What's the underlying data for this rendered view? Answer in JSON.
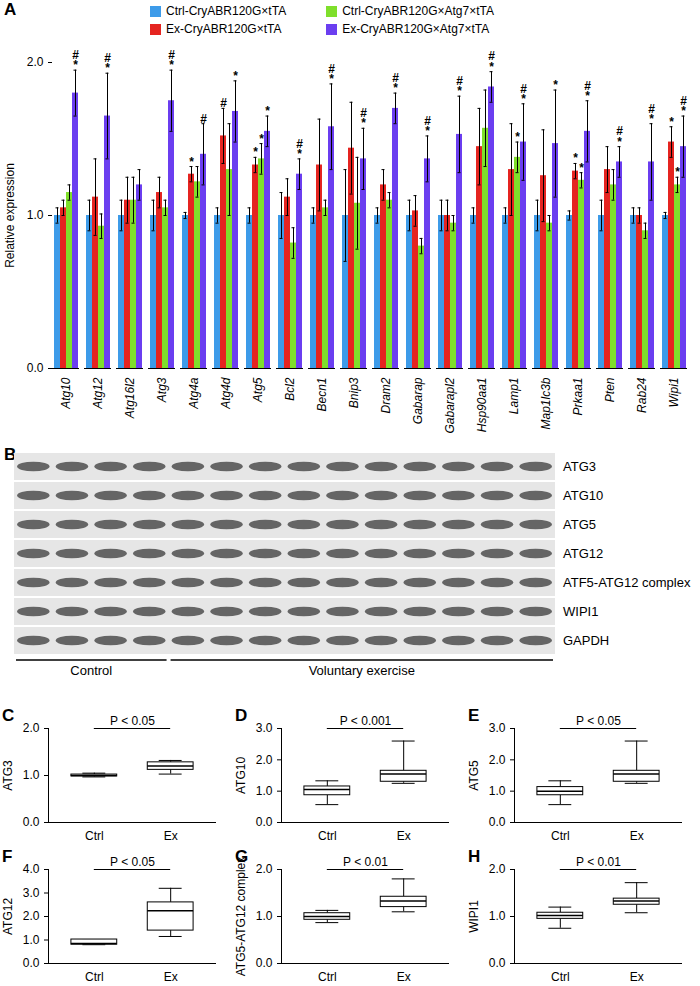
{
  "chart_data": [
    {
      "panel": "A",
      "type": "bar",
      "ylabel": "Relative expression",
      "ylim": [
        0,
        2
      ],
      "yticks": [
        0,
        1,
        2
      ],
      "legend": "top",
      "categories": [
        "Atg10",
        "Atg12",
        "Atg16l2",
        "Atg3",
        "Atg4a",
        "Atg4d",
        "Atg5",
        "Bcl2",
        "Becn1",
        "Bnip3",
        "Dram2",
        "Gabarap",
        "Gabarapl2",
        "Hsp90aa1",
        "Lamp1",
        "Map1lc3b",
        "Prkaa1",
        "Pten",
        "Rab24",
        "Wipi1"
      ],
      "series": [
        {
          "name": "Ctrl-CryABR120G×tTA",
          "color": "#3d9be9",
          "values": [
            1,
            1,
            1,
            1,
            1,
            1,
            1,
            1,
            1,
            1,
            1,
            1,
            1,
            1,
            1,
            1,
            1,
            1,
            1,
            1
          ],
          "errors": [
            0.05,
            0.1,
            0.1,
            0.1,
            0.02,
            0.05,
            0.05,
            0.15,
            0.05,
            0.3,
            0.05,
            0.1,
            0.1,
            0.05,
            0.05,
            0.1,
            0.03,
            0.1,
            0.05,
            0.02
          ],
          "significance": [
            null,
            null,
            null,
            null,
            null,
            null,
            null,
            null,
            null,
            null,
            null,
            null,
            null,
            null,
            null,
            null,
            null,
            null,
            null,
            null
          ]
        },
        {
          "name": "Ex-CryABR120G×tTA",
          "color": "#e52420",
          "values": [
            1.05,
            1.12,
            1.1,
            1.15,
            1.27,
            1.52,
            1.33,
            1.12,
            1.33,
            1.44,
            1.2,
            1.03,
            1.0,
            1.45,
            1.3,
            1.26,
            1.29,
            1.3,
            1.0,
            1.48
          ],
          "errors": [
            0.05,
            0.25,
            0.15,
            0.1,
            0.05,
            0.18,
            0.05,
            0.12,
            0.3,
            0.3,
            0.1,
            0.1,
            0.1,
            0.25,
            0.3,
            0.3,
            0.05,
            0.15,
            0.05,
            0.1
          ],
          "significance": [
            null,
            null,
            null,
            null,
            [
              "*"
            ],
            [
              "#"
            ],
            [
              "*"
            ],
            null,
            null,
            null,
            null,
            null,
            null,
            null,
            null,
            null,
            [
              "*"
            ],
            null,
            null,
            [
              "*"
            ]
          ]
        },
        {
          "name": "Ctrl-CryABR120G×Atg7×tTA",
          "color": "#7fdf2b",
          "values": [
            1.15,
            0.93,
            1.1,
            1.05,
            1.22,
            1.3,
            1.37,
            0.82,
            1.05,
            1.08,
            1.1,
            0.8,
            0.95,
            1.57,
            1.38,
            0.95,
            1.23,
            1.2,
            0.9,
            1.2
          ],
          "errors": [
            0.05,
            0.08,
            0.15,
            0.05,
            0.1,
            0.3,
            0.1,
            0.1,
            0.05,
            0.3,
            0.05,
            0.05,
            0.05,
            0.25,
            0.1,
            0.05,
            0.05,
            0.1,
            0.05,
            0.05
          ],
          "significance": [
            null,
            null,
            null,
            null,
            null,
            null,
            [
              "*"
            ],
            null,
            null,
            null,
            null,
            null,
            null,
            null,
            [
              "*"
            ],
            null,
            [
              "*"
            ],
            null,
            null,
            [
              "*"
            ]
          ]
        },
        {
          "name": "Ex-CryABR120G×Atg7×tTA",
          "color": "#6b3ef0",
          "values": [
            1.8,
            1.65,
            1.2,
            1.75,
            1.4,
            1.68,
            1.55,
            1.27,
            1.58,
            1.37,
            1.7,
            1.37,
            1.53,
            1.84,
            1.48,
            1.47,
            1.55,
            1.35,
            1.35,
            1.45
          ],
          "errors": [
            0.15,
            0.28,
            0.1,
            0.2,
            0.2,
            0.2,
            0.1,
            0.1,
            0.28,
            0.2,
            0.1,
            0.15,
            0.25,
            0.1,
            0.25,
            0.35,
            0.2,
            0.1,
            0.25,
            0.2
          ],
          "significance": [
            [
              "#",
              "*"
            ],
            [
              "#",
              "*"
            ],
            null,
            [
              "#",
              "*"
            ],
            [
              "#"
            ],
            [
              "*"
            ],
            [
              "*"
            ],
            [
              "#",
              "*"
            ],
            [
              "#",
              "*"
            ],
            [
              "#",
              "*"
            ],
            [
              "#",
              "*"
            ],
            [
              "#",
              "*"
            ],
            [
              "#",
              "*"
            ],
            [
              "#",
              "*"
            ],
            [
              "#",
              "*"
            ],
            [
              "*"
            ],
            [
              "#",
              "*"
            ],
            [
              "#",
              "*"
            ],
            [
              "#",
              "*"
            ],
            [
              "#",
              "*"
            ]
          ]
        }
      ]
    },
    {
      "panel": "B",
      "type": "blot",
      "rows": [
        "ATG3",
        "ATG10",
        "ATG5",
        "ATG12",
        "ATF5-ATG12 complex",
        "WIPI1",
        "GAPDH"
      ],
      "groups": [
        {
          "label": "Control",
          "lanes": 4
        },
        {
          "label": "Voluntary exercise",
          "lanes": 10
        }
      ]
    },
    {
      "panel": "C",
      "type": "box",
      "ylabel": "ATG3",
      "categories": [
        "Ctrl",
        "Ex"
      ],
      "ylim": [
        0,
        2
      ],
      "yticks": [
        0,
        1,
        2
      ],
      "annotation": "P < 0.05",
      "boxes": [
        {
          "min": 0.97,
          "q1": 0.98,
          "median": 1.0,
          "q3": 1.02,
          "max": 1.05
        },
        {
          "min": 1.03,
          "q1": 1.12,
          "median": 1.2,
          "q3": 1.28,
          "max": 1.32
        }
      ]
    },
    {
      "panel": "D",
      "type": "box",
      "ylabel": "ATG10",
      "categories": [
        "Ctrl",
        "Ex"
      ],
      "ylim": [
        0,
        3
      ],
      "yticks": [
        0,
        1,
        2,
        3
      ],
      "annotation": "P < 0.001",
      "boxes": [
        {
          "min": 0.57,
          "q1": 0.87,
          "median": 1.05,
          "q3": 1.15,
          "max": 1.33
        },
        {
          "min": 1.25,
          "q1": 1.3,
          "median": 1.55,
          "q3": 1.65,
          "max": 2.6
        }
      ]
    },
    {
      "panel": "E",
      "type": "box",
      "ylabel": "ATG5",
      "categories": [
        "Ctrl",
        "Ex"
      ],
      "ylim": [
        0,
        3
      ],
      "yticks": [
        0,
        1,
        2,
        3
      ],
      "annotation": "P < 0.05",
      "boxes": [
        {
          "min": 0.57,
          "q1": 0.87,
          "median": 1.0,
          "q3": 1.13,
          "max": 1.33
        },
        {
          "min": 1.25,
          "q1": 1.3,
          "median": 1.55,
          "q3": 1.65,
          "max": 2.6
        }
      ]
    },
    {
      "panel": "F",
      "type": "box",
      "ylabel": "ATG12",
      "categories": [
        "Ctrl",
        "Ex"
      ],
      "ylim": [
        0,
        4
      ],
      "yticks": [
        0,
        1,
        2,
        3,
        4
      ],
      "annotation": "P < 0.05",
      "boxes": [
        {
          "min": 0.8,
          "q1": 0.8,
          "median": 0.85,
          "q3": 1.02,
          "max": 1.02
        },
        {
          "min": 1.15,
          "q1": 1.4,
          "median": 2.25,
          "q3": 2.6,
          "max": 3.2
        }
      ]
    },
    {
      "panel": "G",
      "type": "box",
      "ylabel": "ATG5-ATG12 complex",
      "categories": [
        "Ctrl",
        "Ex"
      ],
      "ylim": [
        0,
        2
      ],
      "yticks": [
        0,
        1,
        2
      ],
      "annotation": "P < 0.01",
      "boxes": [
        {
          "min": 0.87,
          "q1": 0.93,
          "median": 1.0,
          "q3": 1.07,
          "max": 1.13
        },
        {
          "min": 1.1,
          "q1": 1.2,
          "median": 1.33,
          "q3": 1.42,
          "max": 1.8
        }
      ]
    },
    {
      "panel": "H",
      "type": "box",
      "ylabel": "WIPI1",
      "categories": [
        "Ctrl",
        "Ex"
      ],
      "ylim": [
        0,
        2
      ],
      "yticks": [
        0,
        1,
        2
      ],
      "annotation": "P < 0.01",
      "boxes": [
        {
          "min": 0.75,
          "q1": 0.95,
          "median": 1.02,
          "q3": 1.08,
          "max": 1.2
        },
        {
          "min": 1.08,
          "q1": 1.25,
          "median": 1.33,
          "q3": 1.38,
          "max": 1.72
        }
      ]
    }
  ]
}
